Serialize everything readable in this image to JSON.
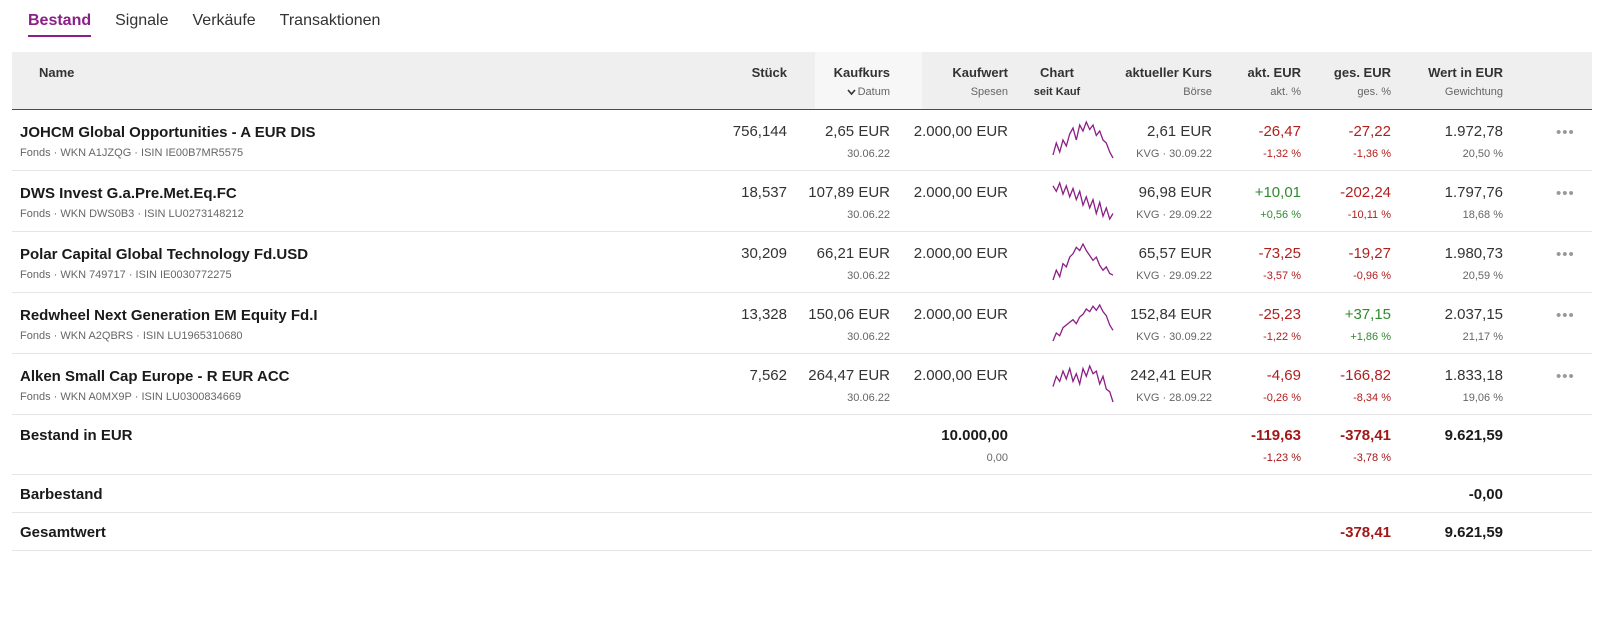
{
  "tabs": [
    {
      "label": "Bestand",
      "active": true
    },
    {
      "label": "Signale",
      "active": false
    },
    {
      "label": "Verkäufe",
      "active": false
    },
    {
      "label": "Transaktionen",
      "active": false
    }
  ],
  "header": {
    "name": "Name",
    "stueck": "Stück",
    "kaufkurs": "Kaufkurs",
    "datum": "Datum",
    "kaufwert": "Kaufwert",
    "spesen": "Spesen",
    "chart": "Chart",
    "seit_kauf": "seit Kauf",
    "aktueller_kurs": "aktueller Kurs",
    "boerse": "Börse",
    "akt_eur": "akt. EUR",
    "akt_pct": "akt. %",
    "ges_eur": "ges. EUR",
    "ges_pct": "ges. %",
    "wert_eur": "Wert in EUR",
    "gewichtung": "Gewichtung"
  },
  "positions": [
    {
      "name": "JOHCM Global Opportunities - A EUR DIS",
      "meta": "Fonds · WKN A1JZQG · ISIN IE00B7MR5575",
      "stueck": "756,144",
      "kaufkurs": "2,65 EUR",
      "datum": "30.06.22",
      "kaufwert": "2.000,00 EUR",
      "kurs": "2,61 EUR",
      "boerse": "KVG · 30.09.22",
      "akt_eur": "-26,47",
      "akt_pct": "-1,32 %",
      "akt_dir": "neg",
      "ges_eur": "-27,22",
      "ges_pct": "-1,36 %",
      "ges_dir": "neg",
      "wert": "1.972,78",
      "gewichtung": "20,50 %",
      "spark": [
        20,
        28,
        22,
        30,
        26,
        34,
        38,
        30,
        40,
        36,
        42,
        37,
        40,
        33,
        36,
        30,
        28,
        22,
        18
      ]
    },
    {
      "name": "DWS Invest G.a.Pre.Met.Eq.FC",
      "meta": "Fonds · WKN DWS0B3 · ISIN LU0273148212",
      "stueck": "18,537",
      "kaufkurs": "107,89 EUR",
      "datum": "30.06.22",
      "kaufwert": "2.000,00 EUR",
      "kurs": "96,98 EUR",
      "boerse": "KVG · 29.09.22",
      "akt_eur": "+10,01",
      "akt_pct": "+0,56 %",
      "akt_dir": "pos",
      "ges_eur": "-202,24",
      "ges_pct": "-10,11 %",
      "ges_dir": "neg",
      "wert": "1.797,76",
      "gewichtung": "18,68 %",
      "spark": [
        40,
        36,
        42,
        34,
        40,
        32,
        38,
        30,
        36,
        26,
        32,
        24,
        30,
        20,
        28,
        18,
        24,
        16,
        20
      ]
    },
    {
      "name": "Polar Capital Global Technology Fd.USD",
      "meta": "Fonds · WKN 749717 · ISIN IE0030772275",
      "stueck": "30,209",
      "kaufkurs": "66,21 EUR",
      "datum": "30.06.22",
      "kaufwert": "2.000,00 EUR",
      "kurs": "65,57 EUR",
      "boerse": "KVG · 29.09.22",
      "akt_eur": "-73,25",
      "akt_pct": "-3,57 %",
      "akt_dir": "neg",
      "ges_eur": "-19,27",
      "ges_pct": "-0,96 %",
      "ges_dir": "neg",
      "wert": "1.980,73",
      "gewichtung": "20,59 %",
      "spark": [
        18,
        24,
        20,
        28,
        26,
        32,
        34,
        38,
        36,
        40,
        36,
        33,
        30,
        32,
        27,
        24,
        26,
        22,
        21
      ]
    },
    {
      "name": "Redwheel Next Generation EM Equity Fd.I",
      "meta": "Fonds · WKN A2QBRS · ISIN LU1965310680",
      "stueck": "13,328",
      "kaufkurs": "150,06 EUR",
      "datum": "30.06.22",
      "kaufwert": "2.000,00 EUR",
      "kurs": "152,84 EUR",
      "boerse": "KVG · 30.09.22",
      "akt_eur": "-25,23",
      "akt_pct": "-1,22 %",
      "akt_dir": "neg",
      "ges_eur": "+37,15",
      "ges_pct": "+1,86 %",
      "ges_dir": "pos",
      "wert": "2.037,15",
      "gewichtung": "21,17 %",
      "spark": [
        14,
        20,
        18,
        24,
        26,
        28,
        30,
        27,
        32,
        34,
        38,
        36,
        40,
        37,
        41,
        36,
        33,
        26,
        22
      ]
    },
    {
      "name": "Alken Small Cap Europe - R EUR ACC",
      "meta": "Fonds · WKN A0MX9P · ISIN LU0300834669",
      "stueck": "7,562",
      "kaufkurs": "264,47 EUR",
      "datum": "30.06.22",
      "kaufwert": "2.000,00 EUR",
      "kurs": "242,41 EUR",
      "boerse": "KVG · 28.09.22",
      "akt_eur": "-4,69",
      "akt_pct": "-0,26 %",
      "akt_dir": "neg",
      "ges_eur": "-166,82",
      "ges_pct": "-8,34 %",
      "ges_dir": "neg",
      "wert": "1.833,18",
      "gewichtung": "19,06 %",
      "spark": [
        26,
        34,
        30,
        38,
        32,
        40,
        30,
        36,
        28,
        40,
        34,
        42,
        36,
        38,
        28,
        34,
        24,
        22,
        14
      ]
    }
  ],
  "bestand": {
    "label": "Bestand in EUR",
    "kaufwert": "10.000,00",
    "spesen": "0,00",
    "akt_eur": "-119,63",
    "akt_pct": "-1,23 %",
    "ges_eur": "-378,41",
    "ges_pct": "-3,78 %",
    "wert": "9.621,59"
  },
  "barbestand": {
    "label": "Barbestand",
    "wert": "-0,00"
  },
  "gesamtwert": {
    "label": "Gesamtwert",
    "ges_eur": "-378,41",
    "wert": "9.621,59"
  },
  "colors": {
    "accent": "#8b1f86",
    "negative": "#b0201f",
    "positive": "#2e8b2e"
  },
  "icons": {
    "sort": "chevron-down-icon",
    "more": "more-dots-icon"
  }
}
